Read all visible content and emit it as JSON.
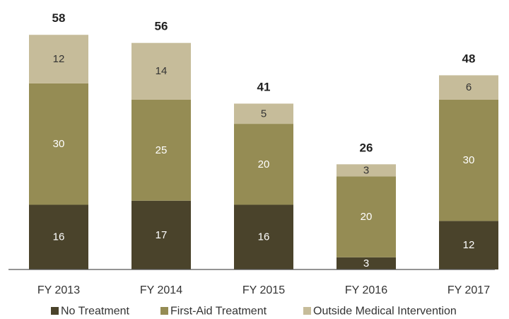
{
  "chart_data": {
    "type": "bar",
    "stacked": true,
    "title": "",
    "xlabel": "",
    "ylabel": "",
    "categories": [
      "FY 2013",
      "FY 2014",
      "FY 2015",
      "FY 2016",
      "FY 2017"
    ],
    "totals": [
      58,
      56,
      41,
      26,
      48
    ],
    "ylim": [
      0,
      58
    ],
    "series": [
      {
        "name": "No Treatment",
        "color": "#4a432b",
        "label_color": "#ffffff",
        "values": [
          16,
          17,
          16,
          3,
          12
        ]
      },
      {
        "name": "First-Aid Treatment",
        "color": "#958c54",
        "label_color": "#ffffff",
        "values": [
          30,
          25,
          20,
          20,
          30
        ]
      },
      {
        "name": "Outside Medical Intervention",
        "color": "#c6bc9a",
        "label_color": "#333333",
        "values": [
          12,
          14,
          5,
          3,
          6
        ]
      }
    ],
    "grid": false,
    "legend_position": "bottom"
  }
}
